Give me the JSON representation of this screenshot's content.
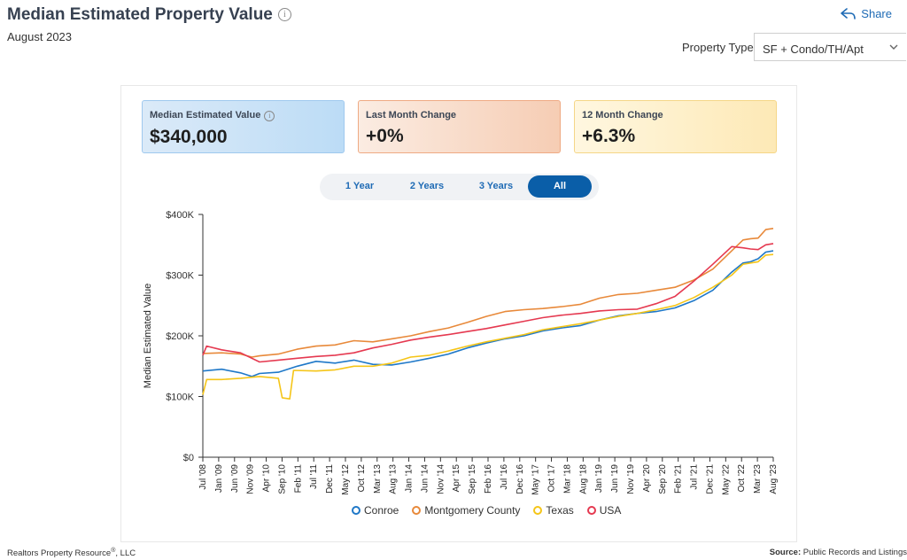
{
  "header": {
    "title": "Median Estimated Property Value",
    "subtitle": "August 2023",
    "share_label": "Share",
    "property_type_label": "Property Type",
    "property_type_value": "SF + Condo/TH/Apt"
  },
  "cards": {
    "median_label": "Median Estimated Value",
    "median_value": "$340,000",
    "last_month_label": "Last Month Change",
    "last_month_value": "+0%",
    "twelve_month_label": "12 Month Change",
    "twelve_month_value": "+6.3%",
    "colors": {
      "median": "#bcdcf6",
      "last_month": "#f6cdb4",
      "twelve_month": "#fde9b6"
    }
  },
  "tabs": {
    "t1": "1 Year",
    "t2": "2 Years",
    "t3": "3 Years",
    "t4": "All",
    "active": "All"
  },
  "footer": {
    "left": "Realtors Property Resource",
    "left_mark": "®",
    "left_suffix": ", LLC",
    "source_label": "Source:",
    "source_value": "Public Records and Listings"
  },
  "chart_data": {
    "type": "line",
    "ylabel": "Median Estimated Value",
    "xlabel": "",
    "ylim": [
      0,
      400000
    ],
    "y_ticks": [
      "$0",
      "$100K",
      "$200K",
      "$300K",
      "$400K"
    ],
    "y_tick_values": [
      0,
      100000,
      200000,
      300000,
      400000
    ],
    "x_ticks": [
      "Jul '08",
      "Jan '09",
      "Jun '09",
      "Nov '09",
      "Apr '10",
      "Sep '10",
      "Feb '11",
      "Jul '11",
      "Dec '11",
      "May '12",
      "Oct '12",
      "Mar '13",
      "Aug '13",
      "Jan '14",
      "Jun '14",
      "Nov '14",
      "Apr '15",
      "Sep '15",
      "Feb '16",
      "Jul '16",
      "Dec '16",
      "May '17",
      "Oct '17",
      "Mar '18",
      "Aug '18",
      "Jan '19",
      "Jun '19",
      "Nov '19",
      "Apr '20",
      "Sep '20",
      "Feb '21",
      "Jul '21",
      "Dec '21",
      "May '22",
      "Oct '22",
      "Mar '23",
      "Aug '23"
    ],
    "grid": false,
    "legend_position": "bottom",
    "series": [
      {
        "name": "Conroe",
        "color": "#1f78c8",
        "points": [
          [
            2008.5,
            142000
          ],
          [
            2009.0,
            145000
          ],
          [
            2009.5,
            139000
          ],
          [
            2009.8,
            133000
          ],
          [
            2010.0,
            138000
          ],
          [
            2010.5,
            140000
          ],
          [
            2011.0,
            150000
          ],
          [
            2011.5,
            158000
          ],
          [
            2012.0,
            155000
          ],
          [
            2012.5,
            160000
          ],
          [
            2013.0,
            153000
          ],
          [
            2013.5,
            152000
          ],
          [
            2014.0,
            157000
          ],
          [
            2014.5,
            163000
          ],
          [
            2015.0,
            170000
          ],
          [
            2015.5,
            180000
          ],
          [
            2016.0,
            188000
          ],
          [
            2016.5,
            195000
          ],
          [
            2017.0,
            200000
          ],
          [
            2017.5,
            208000
          ],
          [
            2018.0,
            213000
          ],
          [
            2018.5,
            217000
          ],
          [
            2019.0,
            226000
          ],
          [
            2019.5,
            233000
          ],
          [
            2020.0,
            237000
          ],
          [
            2020.5,
            240000
          ],
          [
            2021.0,
            246000
          ],
          [
            2021.5,
            258000
          ],
          [
            2022.0,
            275000
          ],
          [
            2022.5,
            305000
          ],
          [
            2022.8,
            320000
          ],
          [
            2023.0,
            322000
          ],
          [
            2023.2,
            327000
          ],
          [
            2023.4,
            338000
          ],
          [
            2023.6,
            340000
          ]
        ]
      },
      {
        "name": "Montgomery County",
        "color": "#e8893a",
        "points": [
          [
            2008.5,
            171000
          ],
          [
            2009.0,
            172000
          ],
          [
            2009.5,
            170000
          ],
          [
            2009.8,
            165000
          ],
          [
            2010.0,
            167000
          ],
          [
            2010.5,
            170000
          ],
          [
            2011.0,
            178000
          ],
          [
            2011.5,
            183000
          ],
          [
            2012.0,
            185000
          ],
          [
            2012.5,
            192000
          ],
          [
            2013.0,
            190000
          ],
          [
            2013.5,
            195000
          ],
          [
            2014.0,
            200000
          ],
          [
            2014.5,
            207000
          ],
          [
            2015.0,
            213000
          ],
          [
            2015.5,
            222000
          ],
          [
            2016.0,
            232000
          ],
          [
            2016.5,
            240000
          ],
          [
            2017.0,
            243000
          ],
          [
            2017.5,
            245000
          ],
          [
            2018.0,
            248000
          ],
          [
            2018.5,
            252000
          ],
          [
            2019.0,
            262000
          ],
          [
            2019.5,
            268000
          ],
          [
            2020.0,
            270000
          ],
          [
            2020.5,
            275000
          ],
          [
            2021.0,
            280000
          ],
          [
            2021.5,
            292000
          ],
          [
            2022.0,
            310000
          ],
          [
            2022.5,
            340000
          ],
          [
            2022.8,
            358000
          ],
          [
            2023.0,
            360000
          ],
          [
            2023.2,
            361000
          ],
          [
            2023.4,
            375000
          ],
          [
            2023.6,
            377000
          ]
        ]
      },
      {
        "name": "Texas",
        "color": "#f5c518",
        "points": [
          [
            2008.5,
            103000
          ],
          [
            2008.6,
            128000
          ],
          [
            2009.0,
            128000
          ],
          [
            2009.5,
            130000
          ],
          [
            2010.0,
            133000
          ],
          [
            2010.5,
            130000
          ],
          [
            2010.6,
            98000
          ],
          [
            2010.8,
            96000
          ],
          [
            2010.9,
            143000
          ],
          [
            2011.5,
            142000
          ],
          [
            2012.0,
            144000
          ],
          [
            2012.5,
            150000
          ],
          [
            2013.0,
            150000
          ],
          [
            2013.5,
            155000
          ],
          [
            2014.0,
            165000
          ],
          [
            2014.5,
            168000
          ],
          [
            2015.0,
            175000
          ],
          [
            2015.5,
            183000
          ],
          [
            2016.0,
            190000
          ],
          [
            2016.5,
            196000
          ],
          [
            2017.0,
            202000
          ],
          [
            2017.5,
            210000
          ],
          [
            2018.0,
            215000
          ],
          [
            2018.5,
            220000
          ],
          [
            2019.0,
            226000
          ],
          [
            2019.5,
            232000
          ],
          [
            2020.0,
            237000
          ],
          [
            2020.5,
            243000
          ],
          [
            2021.0,
            250000
          ],
          [
            2021.5,
            263000
          ],
          [
            2022.0,
            280000
          ],
          [
            2022.5,
            300000
          ],
          [
            2022.8,
            318000
          ],
          [
            2023.0,
            320000
          ],
          [
            2023.2,
            322000
          ],
          [
            2023.4,
            333000
          ],
          [
            2023.6,
            334000
          ]
        ]
      },
      {
        "name": "USA",
        "color": "#e53950",
        "points": [
          [
            2008.5,
            168000
          ],
          [
            2008.6,
            183000
          ],
          [
            2009.0,
            177000
          ],
          [
            2009.5,
            172000
          ],
          [
            2010.0,
            157000
          ],
          [
            2010.5,
            160000
          ],
          [
            2011.0,
            163000
          ],
          [
            2011.5,
            166000
          ],
          [
            2012.0,
            168000
          ],
          [
            2012.5,
            172000
          ],
          [
            2013.0,
            180000
          ],
          [
            2013.5,
            186000
          ],
          [
            2014.0,
            193000
          ],
          [
            2014.5,
            198000
          ],
          [
            2015.0,
            202000
          ],
          [
            2015.5,
            207000
          ],
          [
            2016.0,
            212000
          ],
          [
            2016.5,
            218000
          ],
          [
            2017.0,
            224000
          ],
          [
            2017.5,
            230000
          ],
          [
            2018.0,
            234000
          ],
          [
            2018.5,
            237000
          ],
          [
            2019.0,
            241000
          ],
          [
            2019.5,
            243000
          ],
          [
            2020.0,
            244000
          ],
          [
            2020.5,
            253000
          ],
          [
            2021.0,
            265000
          ],
          [
            2021.5,
            290000
          ],
          [
            2022.0,
            318000
          ],
          [
            2022.5,
            347000
          ],
          [
            2022.8,
            345000
          ],
          [
            2023.0,
            343000
          ],
          [
            2023.2,
            342000
          ],
          [
            2023.4,
            350000
          ],
          [
            2023.6,
            352000
          ]
        ]
      }
    ]
  }
}
